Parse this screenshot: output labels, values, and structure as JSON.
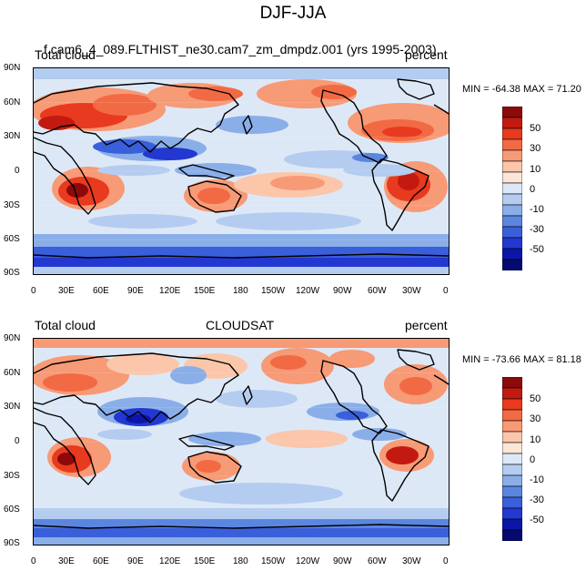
{
  "page_title": "DJF-JJA",
  "panels": [
    {
      "left_label": "Total cloud",
      "center_label": "f.cam6_4_089.FLTHIST_ne30.cam7_zm_dmpdz.001 (yrs 1995-2003)",
      "right_label": "percent",
      "min_label": "MIN = -64.38",
      "max_label": "MAX =  71.20"
    },
    {
      "left_label": "Total cloud",
      "center_label": "CLOUDSAT",
      "right_label": "percent",
      "min_label": "MIN = -73.66",
      "max_label": "MAX =  81.18"
    }
  ],
  "axes": {
    "lat_labels": [
      "90N",
      "60N",
      "30N",
      "0",
      "30S",
      "60S",
      "90S"
    ],
    "lon_labels": [
      "0",
      "30E",
      "60E",
      "90E",
      "120E",
      "150E",
      "180",
      "150W",
      "120W",
      "90W",
      "60W",
      "30W",
      "0"
    ]
  },
  "colorbar": {
    "labels": [
      "50",
      "30",
      "10",
      "0",
      "-10",
      "-30",
      "-50"
    ],
    "colors": [
      "#8c0a0a",
      "#c21a10",
      "#e83a1e",
      "#f26a44",
      "#f79a76",
      "#fbc6aa",
      "#fde6d6",
      "#dde8f7",
      "#b4ccf0",
      "#8aaee8",
      "#5b86e0",
      "#3a5fdb",
      "#2238d0",
      "#0b16a8",
      "#050a70"
    ]
  }
}
